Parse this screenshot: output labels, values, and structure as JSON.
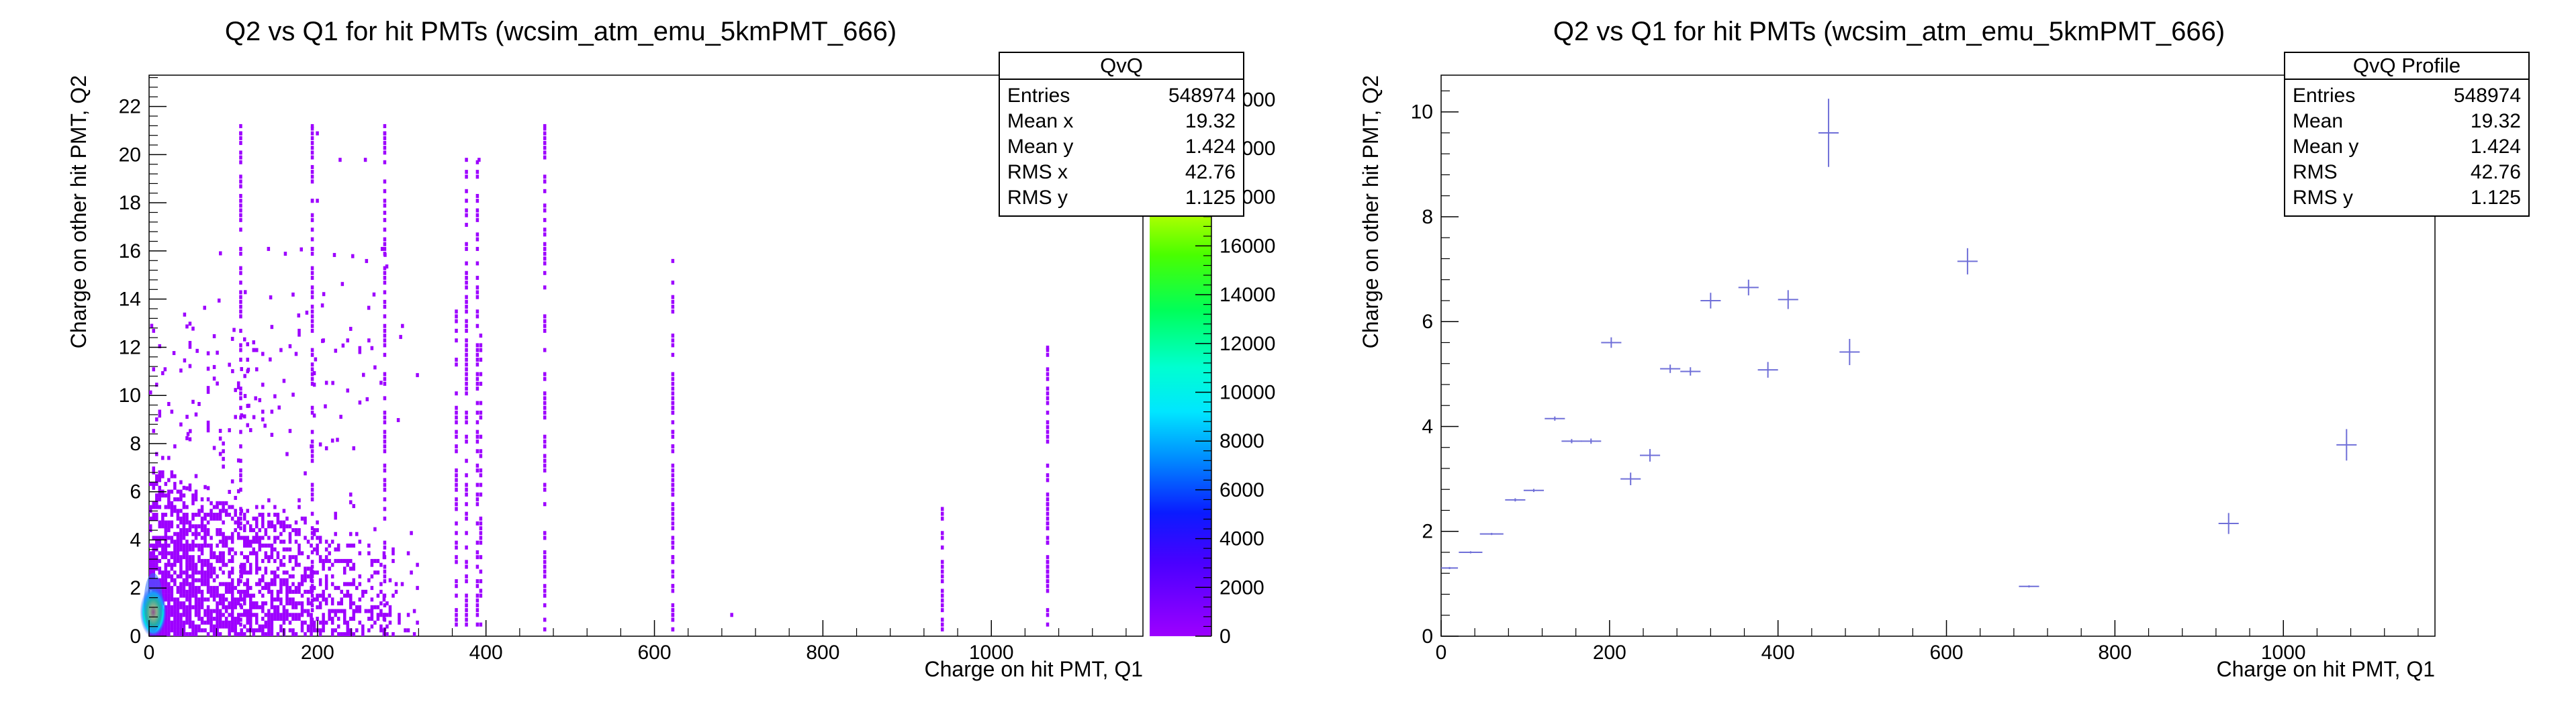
{
  "chart_data": [
    {
      "type": "heatmap",
      "title": "Q2 vs Q1 for hit PMTs (wcsim_atm_emu_5kmPMT_666)",
      "xlabel": "Charge on hit PMT, Q1",
      "ylabel": "Charge on other hit PMT, Q2",
      "xlim": [
        0,
        1180
      ],
      "ylim": [
        0,
        23.3
      ],
      "xticks": [
        0,
        200,
        400,
        600,
        800,
        1000
      ],
      "yticks": [
        0,
        2,
        4,
        6,
        8,
        10,
        12,
        14,
        16,
        18,
        20,
        22
      ],
      "zlim": [
        0,
        23000
      ],
      "zticks": [
        0,
        2000,
        4000,
        6000,
        8000,
        10000,
        12000,
        14000,
        16000
      ],
      "zticks_hidden": [
        18000,
        20000,
        22000
      ],
      "stats": {
        "title": "QvQ",
        "rows": [
          {
            "label": "Entries",
            "value": "548974"
          },
          {
            "label": "Mean x",
            "value": "19.32"
          },
          {
            "label": "Mean y",
            "value": "1.424"
          },
          {
            "label": "RMS x",
            "value": "42.76"
          },
          {
            "label": "RMS y",
            "value": "1.125"
          }
        ]
      },
      "hot_spot": {
        "x": 5,
        "y": 1.0
      },
      "sparse_columns": [
        {
          "x": 107,
          "ymax": 21.0
        },
        {
          "x": 192,
          "ymax": 21.0
        },
        {
          "x": 278,
          "ymax": 21.0
        },
        {
          "x": 468,
          "ymax": 21.0
        },
        {
          "x": 375,
          "ymax": 19.7
        },
        {
          "x": 388,
          "ymax": 19.7
        },
        {
          "x": 363,
          "ymax": 13.8
        },
        {
          "x": 392,
          "ymax": 12.5
        },
        {
          "x": 620,
          "ymax": 15.5
        },
        {
          "x": 620,
          "ymax": 9.7
        },
        {
          "x": 690,
          "ymax": 1.1
        },
        {
          "x": 940,
          "ymax": 5.4
        },
        {
          "x": 1065,
          "ymax": 11.9
        },
        {
          "x": 1065,
          "ymax": 6.0
        }
      ]
    },
    {
      "type": "scatter",
      "title": "Q2 vs Q1 for hit PMTs (wcsim_atm_emu_5kmPMT_666)",
      "xlabel": "Charge on hit PMT, Q1",
      "ylabel": "Charge on other hit PMT, Q2",
      "xlim": [
        0,
        1180
      ],
      "ylim": [
        0,
        10.7
      ],
      "xticks": [
        0,
        200,
        400,
        600,
        800,
        1000
      ],
      "yticks": [
        0,
        2,
        4,
        6,
        8,
        10
      ],
      "stats": {
        "title": "QvQ Profile",
        "rows": [
          {
            "label": "Entries",
            "value": "548974"
          },
          {
            "label": "Mean",
            "value": "19.32"
          },
          {
            "label": "Mean y",
            "value": "1.424"
          },
          {
            "label": "RMS",
            "value": "42.76"
          },
          {
            "label": "RMS y",
            "value": "1.125"
          }
        ]
      },
      "points": [
        {
          "x": 10,
          "y": 1.3,
          "xerr": 10,
          "yerr": 0.02
        },
        {
          "x": 35,
          "y": 1.6,
          "xerr": 14,
          "yerr": 0.02
        },
        {
          "x": 60,
          "y": 1.95,
          "xerr": 14,
          "yerr": 0.02
        },
        {
          "x": 88,
          "y": 2.6,
          "xerr": 12,
          "yerr": 0.03
        },
        {
          "x": 110,
          "y": 2.78,
          "xerr": 12,
          "yerr": 0.03
        },
        {
          "x": 135,
          "y": 4.15,
          "xerr": 12,
          "yerr": 0.04
        },
        {
          "x": 155,
          "y": 3.72,
          "xerr": 12,
          "yerr": 0.04
        },
        {
          "x": 178,
          "y": 3.72,
          "xerr": 12,
          "yerr": 0.05
        },
        {
          "x": 202,
          "y": 5.6,
          "xerr": 12,
          "yerr": 0.1
        },
        {
          "x": 225,
          "y": 3.0,
          "xerr": 12,
          "yerr": 0.12
        },
        {
          "x": 248,
          "y": 3.45,
          "xerr": 12,
          "yerr": 0.12
        },
        {
          "x": 272,
          "y": 5.1,
          "xerr": 12,
          "yerr": 0.08
        },
        {
          "x": 296,
          "y": 5.05,
          "xerr": 12,
          "yerr": 0.08
        },
        {
          "x": 320,
          "y": 6.4,
          "xerr": 12,
          "yerr": 0.15
        },
        {
          "x": 365,
          "y": 6.65,
          "xerr": 12,
          "yerr": 0.15
        },
        {
          "x": 388,
          "y": 5.08,
          "xerr": 12,
          "yerr": 0.15
        },
        {
          "x": 412,
          "y": 6.42,
          "xerr": 12,
          "yerr": 0.18
        },
        {
          "x": 460,
          "y": 9.6,
          "xerr": 12,
          "yerr": 0.65
        },
        {
          "x": 485,
          "y": 5.42,
          "xerr": 12,
          "yerr": 0.25
        },
        {
          "x": 625,
          "y": 7.15,
          "xerr": 12,
          "yerr": 0.25
        },
        {
          "x": 698,
          "y": 0.95,
          "xerr": 12,
          "yerr": 0.02
        },
        {
          "x": 935,
          "y": 2.15,
          "xerr": 12,
          "yerr": 0.2
        },
        {
          "x": 1075,
          "y": 3.65,
          "xerr": 12,
          "yerr": 0.3
        }
      ]
    }
  ]
}
